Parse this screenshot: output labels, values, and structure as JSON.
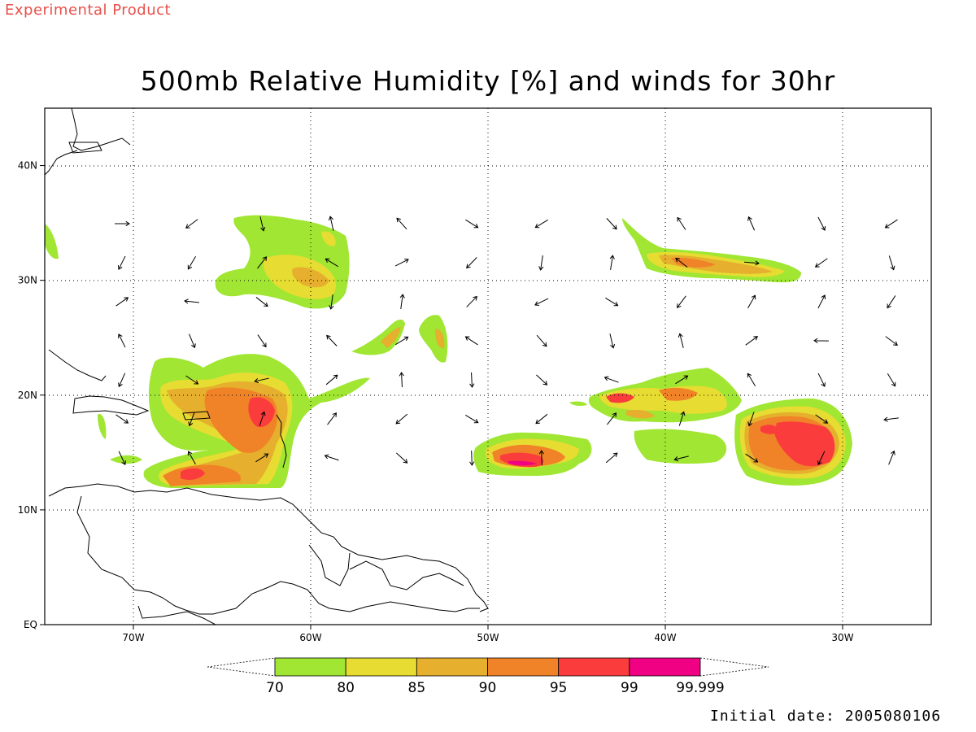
{
  "header": {
    "experimental_label": "Experimental Product",
    "title": "500mb Relative Humidity [%] and winds for 30hr"
  },
  "map": {
    "projection": "cylindrical",
    "lon_range": [
      -75,
      -25
    ],
    "lat_range": [
      0,
      45
    ],
    "lon_ticks": [
      {
        "value": -70,
        "label": "70W"
      },
      {
        "value": -60,
        "label": "60W"
      },
      {
        "value": -50,
        "label": "50W"
      },
      {
        "value": -40,
        "label": "40W"
      },
      {
        "value": -30,
        "label": "30W"
      }
    ],
    "lat_ticks": [
      {
        "value": 0,
        "label": "EQ"
      },
      {
        "value": 10,
        "label": "10N"
      },
      {
        "value": 20,
        "label": "20N"
      },
      {
        "value": 30,
        "label": "30N"
      },
      {
        "value": 40,
        "label": "40N"
      }
    ],
    "grid": "dotted"
  },
  "colorbar": {
    "levels": [
      "70",
      "80",
      "85",
      "90",
      "95",
      "99",
      "99.999"
    ],
    "colors": [
      "#a0e632",
      "#e6dc32",
      "#e6af2d",
      "#f08228",
      "#fa3c3c",
      "#f00082"
    ]
  },
  "colors": {
    "rh70": "#a0e632",
    "rh80": "#e6dc32",
    "rh85": "#e6af2d",
    "rh90": "#f08228",
    "rh95": "#fa3c3c",
    "rh99": "#f00082",
    "experimental_text": "#e8504a"
  },
  "footer": {
    "initial_date": "Initial date: 2005080106"
  }
}
